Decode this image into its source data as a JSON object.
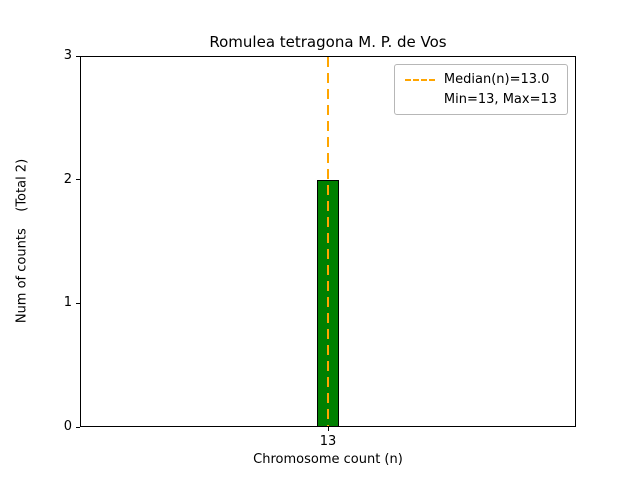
{
  "chart_data": {
    "type": "bar",
    "title": "Romulea tetragona M. P. de Vos",
    "xlabel": "Chromosome count (n)",
    "ylabel": "Num of counts    (Total 2)",
    "categories": [
      "13"
    ],
    "values": [
      2
    ],
    "ylim": [
      0,
      3
    ],
    "yticks": [
      0,
      1,
      2,
      3
    ],
    "median": 13.0,
    "min": 13,
    "max": 13,
    "total": 2,
    "legend": [
      "Median(n)=13.0",
      "Min=13, Max=13"
    ],
    "legend_position": "upper right",
    "grid": false,
    "bar_color": "#008000",
    "bar_edge_color": "#000000",
    "median_line_color": "#ffa500"
  }
}
